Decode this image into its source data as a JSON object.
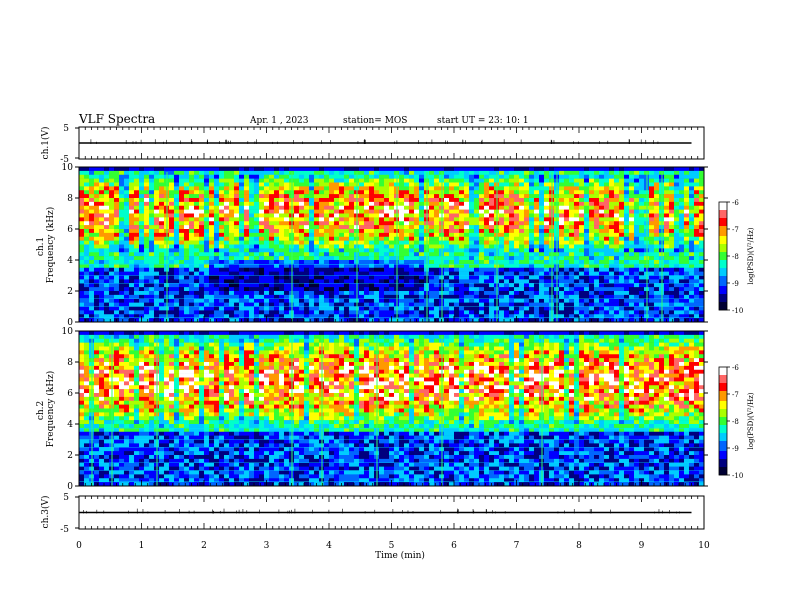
{
  "header": {
    "title": "VLF Spectra",
    "date": "Apr. 1  , 2023",
    "station": "station= MOS",
    "start": "start  UT  =   23: 10: 1"
  },
  "colors": {
    "colormap": [
      "#000033",
      "#00007f",
      "#0000ff",
      "#0066ff",
      "#00ccff",
      "#00ffcc",
      "#33ff33",
      "#aaff00",
      "#ffff00",
      "#ff9900",
      "#ff0000",
      "#ff6666",
      "#ffffff"
    ],
    "waveform": "#000000",
    "axis": "#000000"
  },
  "chart_data": [
    {
      "type": "line",
      "panel": "ch1-waveform",
      "ylabel": "ch.1(V)",
      "ylim": [
        -5,
        5
      ],
      "yticks": [
        "5",
        "-5"
      ],
      "series": [
        {
          "description": "near-constant waveform",
          "x": [
            0,
            9.8
          ],
          "y": [
            0,
            0
          ]
        }
      ]
    },
    {
      "type": "heatmap",
      "panel": "ch1-spectrogram",
      "ylabel": "ch.1\nFrequency (kHz)",
      "xlim": [
        0,
        10
      ],
      "ylim": [
        0,
        10
      ],
      "yticks": [
        "0",
        "2",
        "4",
        "6",
        "8",
        "10"
      ],
      "colorbar": {
        "label": "log(PSD)(V²/Hz)",
        "range": [
          -10,
          -6
        ],
        "ticks": [
          "-6",
          "-7",
          "-8",
          "-9",
          "-10"
        ]
      },
      "band": {
        "kHz_low": 4.5,
        "kHz_high": 9.5,
        "peak_log_psd": -6.5
      }
    },
    {
      "type": "heatmap",
      "panel": "ch2-spectrogram",
      "ylabel": "ch.2\nFrequency (kHz)",
      "xlim": [
        0,
        10
      ],
      "ylim": [
        0,
        10
      ],
      "yticks": [
        "0",
        "2",
        "4",
        "6",
        "8",
        "10"
      ],
      "colorbar": {
        "label": "log(PSD)(V²/Hz)",
        "range": [
          -10,
          -6
        ],
        "ticks": [
          "-6",
          "-7",
          "-8",
          "-9",
          "-10"
        ]
      },
      "band": {
        "kHz_low": 4.0,
        "kHz_high": 9.5,
        "peak_log_psd": -6.5
      }
    },
    {
      "type": "line",
      "panel": "ch3-waveform",
      "ylabel": "ch.3(V)",
      "ylim": [
        -5,
        5
      ],
      "yticks": [
        "5",
        "-5"
      ],
      "xlabel": "Time  (min)",
      "xlim": [
        0,
        10
      ],
      "xticks": [
        "0",
        "1",
        "2",
        "3",
        "4",
        "5",
        "6",
        "7",
        "8",
        "9",
        "10"
      ],
      "series": [
        {
          "description": "near-constant waveform",
          "x": [
            0,
            9.8
          ],
          "y": [
            0,
            0
          ]
        }
      ]
    }
  ]
}
